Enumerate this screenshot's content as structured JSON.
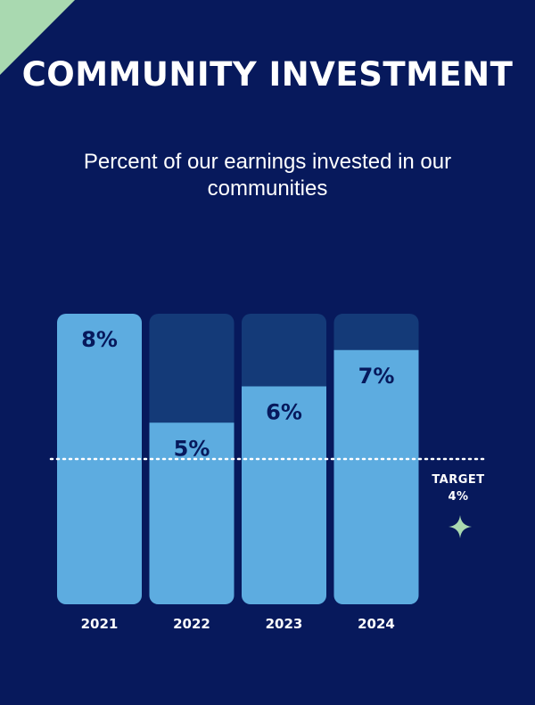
{
  "header": {
    "title": "COMMUNITY INVESTMENT",
    "subtitle": "Percent of our earnings invested in our communities"
  },
  "target": {
    "label": "TARGET",
    "value_label": "4%",
    "value": 4
  },
  "colors": {
    "background": "#07195c",
    "bar_fill": "#5dace0",
    "bar_track": "#143a78",
    "label_text": "#07195c",
    "axis_text": "#ffffff",
    "target_line": "#ffffff",
    "accent": "#a9d9b0"
  },
  "chart_data": {
    "type": "bar",
    "title": "",
    "xlabel": "",
    "ylabel": "",
    "categories": [
      "2021",
      "2022",
      "2023",
      "2024"
    ],
    "values": [
      8,
      5,
      6,
      7
    ],
    "value_labels": [
      "8%",
      "5%",
      "6%",
      "7%"
    ],
    "unit": "%",
    "ylim": [
      0,
      8
    ],
    "grid": false,
    "legend": "none",
    "reference_line": {
      "value": 4,
      "label": "TARGET 4%"
    }
  }
}
